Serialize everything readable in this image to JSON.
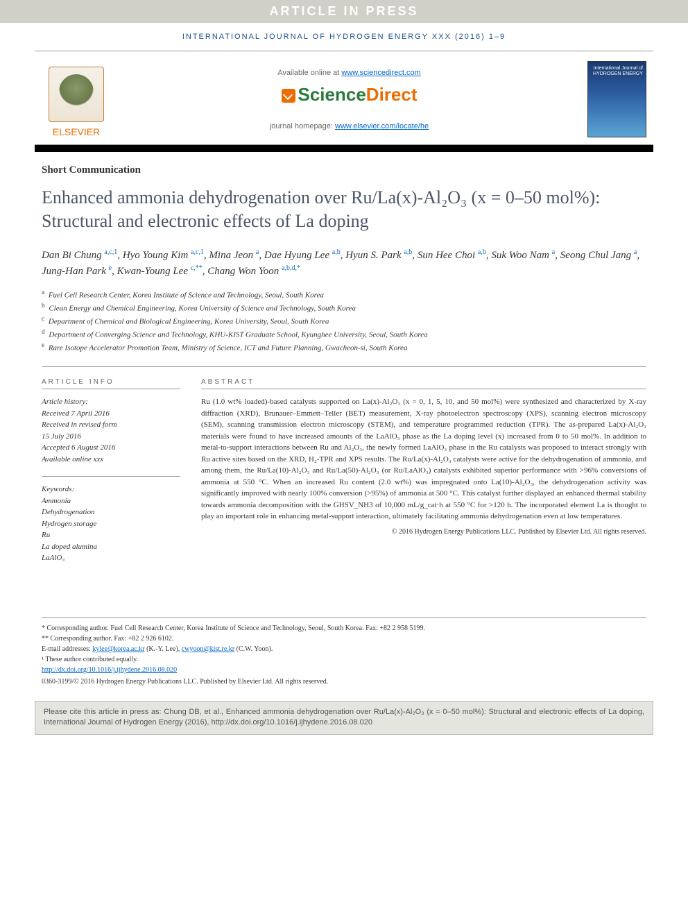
{
  "banner": "ARTICLE IN PRESS",
  "journal_ref": "INTERNATIONAL JOURNAL OF HYDROGEN ENERGY XXX (2016) 1–9",
  "header": {
    "elsevier": "ELSEVIER",
    "available_prefix": "Available online at ",
    "available_url": "www.sciencedirect.com",
    "sd_science": "Science",
    "sd_direct": "Direct",
    "homepage_prefix": "journal homepage: ",
    "homepage_url": "www.elsevier.com/locate/he",
    "cover_title": "International Journal of\nHYDROGEN\nENERGY"
  },
  "article_type": "Short Communication",
  "title": "Enhanced ammonia dehydrogenation over Ru/La(x)-Al₂O₃ (x = 0–50 mol%): Structural and electronic effects of La doping",
  "authors_html": "Dan Bi Chung <sup>a,c,1</sup>, Hyo Young Kim <sup>a,c,1</sup>, Mina Jeon <sup>a</sup>, Dae Hyung Lee <sup>a,b</sup>, Hyun S. Park <sup>a,b</sup>, Sun Hee Choi <sup>a,b</sup>, Suk Woo Nam <sup>a</sup>, Seong Chul Jang <sup>a</sup>, Jung-Han Park <sup>e</sup>, Kwan-Young Lee <sup>c,**</sup>, Chang Won Yoon <sup>a,b,d,*</sup>",
  "affiliations": [
    {
      "sup": "a",
      "text": "Fuel Cell Research Center, Korea Institute of Science and Technology, Seoul, South Korea"
    },
    {
      "sup": "b",
      "text": "Clean Energy and Chemical Engineering, Korea University of Science and Technology, South Korea"
    },
    {
      "sup": "c",
      "text": "Department of Chemical and Biological Engineering, Korea University, Seoul, South Korea"
    },
    {
      "sup": "d",
      "text": "Department of Converging Science and Technology, KHU-KIST Graduate School, Kyunghee University, Seoul, South Korea"
    },
    {
      "sup": "e",
      "text": "Rare Isotope Accelerator Promotion Team, Ministry of Science, ICT and Future Planning, Gwacheon-si, South Korea"
    }
  ],
  "info": {
    "heading": "ARTICLE INFO",
    "history_label": "Article history:",
    "received": "Received 7 April 2016",
    "revised_label": "Received in revised form",
    "revised_date": "15 July 2016",
    "accepted": "Accepted 6 August 2016",
    "online": "Available online xxx",
    "keywords_label": "Keywords:",
    "keywords": [
      "Ammonia",
      "Dehydrogenation",
      "Hydrogen storage",
      "Ru",
      "La doped alumina",
      "LaAlO₃"
    ]
  },
  "abstract": {
    "heading": "ABSTRACT",
    "text": "Ru (1.0 wt% loaded)-based catalysts supported on La(x)-Al₂O₃ (x = 0, 1, 5, 10, and 50 mol%) were synthesized and characterized by X-ray diffraction (XRD), Brunauer–Emmett–Teller (BET) measurement, X-ray photoelectron spectroscopy (XPS), scanning electron microscopy (SEM), scanning transmission electron microscopy (STEM), and temperature programmed reduction (TPR). The as-prepared La(x)-Al₂O₃ materials were found to have increased amounts of the LaAlO₃ phase as the La doping level (x) increased from 0 to 50 mol%. In addition to metal-to-support interactions between Ru and Al₂O₃, the newly formed LaAlO₃ phase in the Ru catalysts was proposed to interact strongly with Ru active sites based on the XRD, H₂-TPR and XPS results. The Ru/La(x)-Al₂O₃ catalysts were active for the dehydrogenation of ammonia, and among them, the Ru/La(10)-Al₂O₃ and Ru/La(50)-Al₂O₃ (or Ru/LaAlO₃) catalysts exhibited superior performance with >96% conversions of ammonia at 550 °C. When an increased Ru content (2.0 wt%) was impregnated onto La(10)-Al₂O₃, the dehydrogenation activity was significantly improved with nearly 100% conversion (>95%) of ammonia at 500 °C. This catalyst further displayed an enhanced thermal stability towards ammonia decomposition with the GHSV_NH3 of 10,000 mL/g_cat·h at 550 °C for >120 h. The incorporated element La is thought to play an important role in enhancing metal-support interaction, ultimately facilitating ammonia dehydrogenation even at low temperatures.",
    "copyright": "© 2016 Hydrogen Energy Publications LLC. Published by Elsevier Ltd. All rights reserved."
  },
  "footnotes": {
    "corr1": "* Corresponding author. Fuel Cell Research Center, Korea Institute of Science and Technology, Seoul, South Korea. Fax: +82 2 958 5199.",
    "corr2": "** Corresponding author. Fax: +82 2 926 6102.",
    "email_label": "E-mail addresses: ",
    "email1": "kylee@korea.ac.kr",
    "email1_who": " (K.-Y. Lee), ",
    "email2": "cwyoon@kist.re.kr",
    "email2_who": " (C.W. Yoon).",
    "equal": "¹ These author contributed equally.",
    "doi": "http://dx.doi.org/10.1016/j.ijhydene.2016.08.020",
    "issn": "0360-3199/© 2016 Hydrogen Energy Publications LLC. Published by Elsevier Ltd. All rights reserved."
  },
  "cite_box": "Please cite this article in press as: Chung DB, et al., Enhanced ammonia dehydrogenation over Ru/La(x)-Al₂O₃ (x = 0–50 mol%): Structural and electronic effects of La doping, International Journal of Hydrogen Energy (2016), http://dx.doi.org/10.1016/j.ijhydene.2016.08.020",
  "colors": {
    "banner_bg": "#d0d0c8",
    "banner_text": "#ffffff",
    "journal_blue": "#1b4f8f",
    "elsevier_orange": "#ed6c00",
    "sd_green": "#2a7a3a",
    "link": "#0066cc",
    "title_gray": "#4a5568",
    "citebox_bg": "#e5e5df"
  }
}
